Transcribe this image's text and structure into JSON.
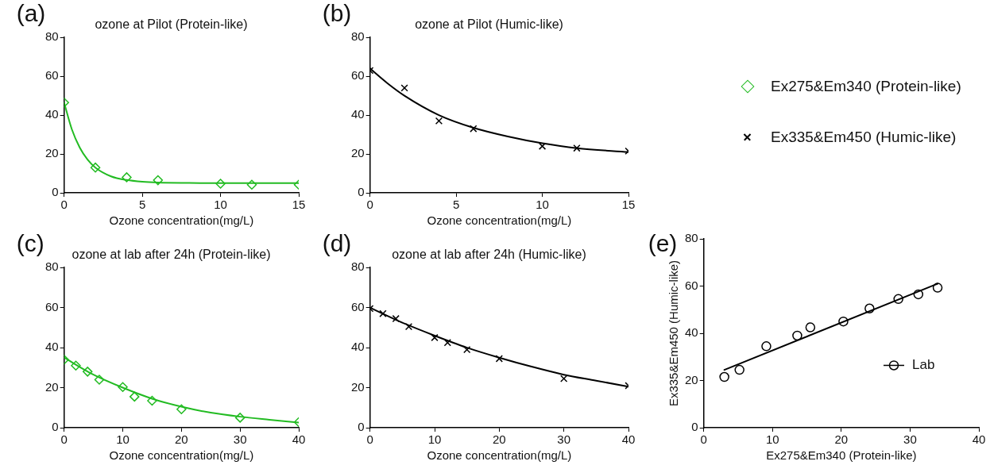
{
  "chart_data": [
    {
      "type": "scatter",
      "title": "ozone at Pilot (Protein-like)",
      "xlabel": "Ozone concentration(mg/L)",
      "annotations": [
        "(a)"
      ],
      "xlim": [
        0,
        15
      ],
      "xticks": [
        0,
        5,
        10,
        15
      ],
      "ylim": [
        0,
        80
      ],
      "yticks": [
        0,
        20,
        40,
        60,
        80
      ],
      "grid": false,
      "legend": "right",
      "series": [
        {
          "name": "Ex275&Em340 (Protein-like)",
          "marker": "diamond",
          "color": "#22bb22",
          "x": [
            0,
            2,
            4,
            6,
            10,
            12,
            15
          ],
          "values": [
            46.5,
            13,
            8,
            6.5,
            4.7,
            4.2,
            4.2
          ]
        },
        {
          "type": "line",
          "marker": "none",
          "color": "#22bb22",
          "x": [
            0,
            0.5,
            1,
            1.5,
            2,
            3,
            4,
            5,
            6,
            8,
            10,
            12,
            15
          ],
          "values": [
            46.5,
            32.6,
            23.3,
            17.1,
            13,
            8.5,
            6.6,
            5.7,
            5.3,
            5.1,
            5,
            5,
            5
          ]
        }
      ]
    },
    {
      "type": "scatter",
      "title": "ozone at Pilot (Humic-like)",
      "xlabel": "Ozone concentration(mg/L)",
      "annotations": [
        "(b)"
      ],
      "xlim": [
        0,
        15
      ],
      "xticks": [
        0,
        5,
        10,
        15
      ],
      "ylim": [
        0,
        80
      ],
      "yticks": [
        0,
        20,
        40,
        60,
        80
      ],
      "grid": false,
      "legend": "right",
      "series": [
        {
          "name": "Ex335&Em450 (Humic-like)",
          "marker": "cross",
          "color": "#000000",
          "x": [
            0,
            2,
            4,
            6,
            10,
            12,
            15
          ],
          "values": [
            63,
            54,
            37,
            33,
            24,
            23,
            21.5
          ]
        },
        {
          "type": "line",
          "marker": "none",
          "color": "#000000",
          "x": [
            0,
            1,
            2,
            4,
            6,
            8,
            10,
            12,
            15
          ],
          "values": [
            64,
            56.5,
            50,
            40,
            33.5,
            29,
            25.5,
            23,
            21
          ]
        }
      ]
    },
    {
      "type": "scatter",
      "title": "ozone at lab after 24h (Protein-like)",
      "xlabel": "Ozone concentration(mg/L)",
      "annotations": [
        "(c)"
      ],
      "xlim": [
        0,
        40
      ],
      "xticks": [
        0,
        10,
        20,
        30,
        40
      ],
      "ylim": [
        0,
        80
      ],
      "yticks": [
        0,
        20,
        40,
        60,
        80
      ],
      "grid": false,
      "series": [
        {
          "marker": "diamond",
          "color": "#22bb22",
          "x": [
            0,
            2,
            4,
            6,
            10,
            12,
            15,
            20,
            30,
            40
          ],
          "values": [
            34,
            31,
            28,
            24,
            20.3,
            15.5,
            13.5,
            9.2,
            5,
            2.8
          ]
        },
        {
          "type": "line",
          "marker": "none",
          "color": "#22bb22",
          "x": [
            0,
            5,
            10,
            15,
            20,
            25,
            30,
            35,
            40
          ],
          "values": [
            35,
            26.5,
            20,
            14.5,
            10.5,
            7.5,
            5.5,
            4,
            2.6
          ]
        }
      ]
    },
    {
      "type": "scatter",
      "title": "ozone at lab after 24h (Humic-like)",
      "xlabel": "Ozone concentration(mg/L)",
      "annotations": [
        "(d)"
      ],
      "xlim": [
        0,
        40
      ],
      "xticks": [
        0,
        10,
        20,
        30,
        40
      ],
      "ylim": [
        0,
        80
      ],
      "yticks": [
        0,
        20,
        40,
        60,
        80
      ],
      "grid": false,
      "series": [
        {
          "marker": "cross",
          "color": "#000000",
          "x": [
            0,
            2,
            4,
            6,
            10,
            12,
            15,
            20,
            30,
            40
          ],
          "values": [
            59.5,
            57,
            54.5,
            50.5,
            45,
            42.5,
            39,
            34.5,
            24.5,
            21
          ]
        },
        {
          "type": "line",
          "marker": "none",
          "color": "#000000",
          "x": [
            0,
            5,
            10,
            15,
            20,
            25,
            30,
            35,
            40
          ],
          "values": [
            60,
            52.5,
            46,
            40,
            35,
            30.5,
            26.5,
            23.5,
            20.5
          ]
        }
      ]
    },
    {
      "type": "scatter",
      "xlabel": "Ex275&Em340 (Protein-like)",
      "ylabel": "Ex335&Em450 (Humic-like)",
      "annotations": [
        "(e)"
      ],
      "xlim": [
        0,
        40
      ],
      "xticks": [
        0,
        10,
        20,
        30,
        40
      ],
      "ylim": [
        0,
        80
      ],
      "yticks": [
        0,
        20,
        40,
        60,
        80
      ],
      "grid": false,
      "legend": "bottom right",
      "series": [
        {
          "name": "Lab",
          "marker": "circle",
          "color": "#000000",
          "x": [
            3,
            5.2,
            9.1,
            13.6,
            15.5,
            20.3,
            24.1,
            28.3,
            31.2,
            34
          ],
          "values": [
            21.5,
            24.5,
            34.5,
            39,
            42.5,
            45,
            50.5,
            54.5,
            56.5,
            59.3
          ]
        },
        {
          "type": "line",
          "marker": "none",
          "color": "#000000",
          "x": [
            3,
            34
          ],
          "values": [
            24.5,
            61
          ]
        }
      ]
    }
  ]
}
